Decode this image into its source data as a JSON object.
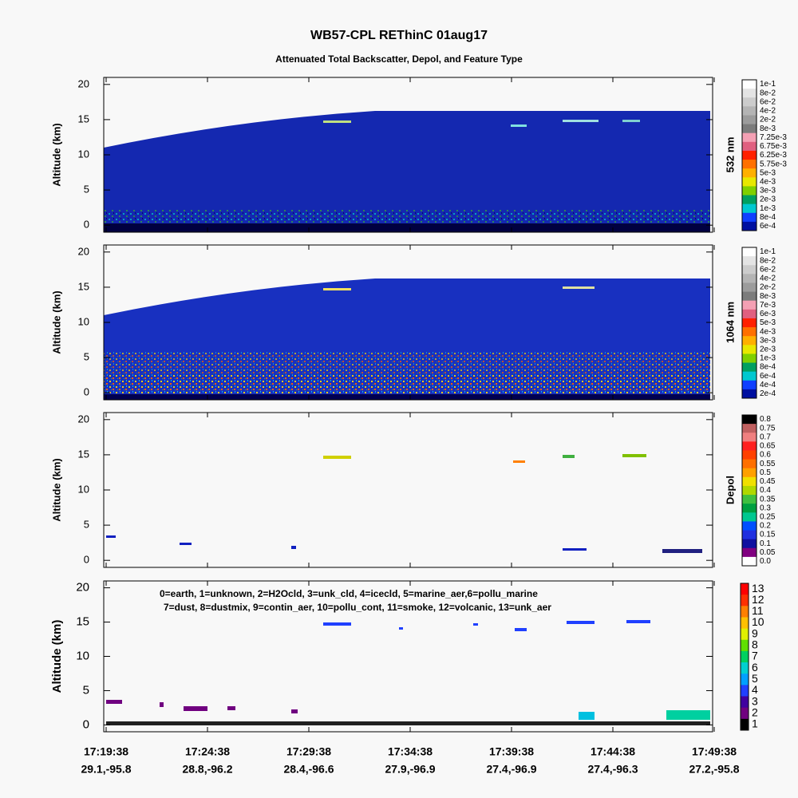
{
  "title": "WB57-CPL REThinC 01aug17",
  "subtitle": "Attenuated Total Backscatter, Depol, and Feature Type",
  "y_axis": {
    "ylim": [
      -1,
      21
    ],
    "yticks": [
      0,
      5,
      10,
      15,
      20
    ]
  },
  "x_ticks": [
    {
      "time": "17:19:38",
      "location": "29.1,-95.8"
    },
    {
      "time": "17:24:38",
      "location": "28.8,-96.2"
    },
    {
      "time": "17:29:38",
      "location": "28.4,-96.6"
    },
    {
      "time": "17:34:38",
      "location": "27.9,-96.9"
    },
    {
      "time": "17:39:38",
      "location": "27.4,-96.9"
    },
    {
      "time": "17:44:38",
      "location": "27.4,-96.3"
    },
    {
      "time": "17:49:38",
      "location": "27.2,-95.8"
    }
  ],
  "panels": [
    {
      "ylabel": "Altitude (km)",
      "colorbar": {
        "title": "532 nm",
        "labels": [
          "1e-1",
          "8e-2",
          "6e-2",
          "4e-2",
          "2e-2",
          "8e-3",
          "7.25e-3",
          "6.75e-3",
          "6.25e-3",
          "5.75e-3",
          "5e-3",
          "4e-3",
          "3e-3",
          "2e-3",
          "1e-3",
          "8e-4",
          "6e-4"
        ],
        "colors": [
          "#ffffff",
          "#e4e4e4",
          "#cccccc",
          "#b4b4b4",
          "#9c9c9c",
          "#7c7c7c",
          "#f4a0b4",
          "#e06080",
          "#ff2000",
          "#ff7000",
          "#ffb000",
          "#e8e800",
          "#80d000",
          "#00a060",
          "#00c8d0",
          "#1040ff",
          "#0010a0"
        ]
      }
    },
    {
      "ylabel": "Altitude (km)",
      "colorbar": {
        "title": "1064 nm",
        "labels": [
          "1e-1",
          "8e-2",
          "6e-2",
          "4e-2",
          "2e-2",
          "8e-3",
          "7e-3",
          "6e-3",
          "5e-3",
          "4e-3",
          "3e-3",
          "2e-3",
          "1e-3",
          "8e-4",
          "6e-4",
          "4e-4",
          "2e-4"
        ],
        "colors": [
          "#ffffff",
          "#e4e4e4",
          "#cccccc",
          "#b4b4b4",
          "#9c9c9c",
          "#7c7c7c",
          "#f4a0b4",
          "#e06080",
          "#ff2000",
          "#ff7000",
          "#ffb000",
          "#e8e800",
          "#80d000",
          "#00a060",
          "#00c8d0",
          "#1040ff",
          "#0010a0"
        ]
      }
    },
    {
      "ylabel": "Altitude (km)",
      "colorbar": {
        "title": "Depol",
        "labels": [
          "0.8",
          "0.75",
          "0.7",
          "0.65",
          "0.6",
          "0.55",
          "0.5",
          "0.45",
          "0.4",
          "0.35",
          "0.3",
          "0.25",
          "0.2",
          "0.15",
          "0.1",
          "0.05",
          "0.0"
        ],
        "colors": [
          "#000000",
          "#c06060",
          "#f08080",
          "#ff2020",
          "#ff4000",
          "#ff7000",
          "#ffa000",
          "#f0e000",
          "#b0d800",
          "#40c040",
          "#00a040",
          "#00c890",
          "#0050ff",
          "#2030e0",
          "#1010a0",
          "#800080",
          "#ffffff"
        ]
      }
    },
    {
      "ylabel": "Altitude (km)",
      "legend": [
        "0=earth, 1=unknown, 2=H2Ocld, 3=unk_cld, 4=icecld, 5=marine_aer,6=pollu_marine",
        "7=dust, 8=dustmix, 9=contin_aer, 10=pollu_cont, 11=smoke, 12=volcanic, 13=unk_aer"
      ],
      "colorbar": {
        "labels": [
          13,
          12,
          11,
          10,
          9,
          8,
          7,
          6,
          5,
          4,
          3,
          2,
          1
        ],
        "colors": [
          "#ff0000",
          "#ff3000",
          "#ff8000",
          "#ffc000",
          "#e0f000",
          "#60e000",
          "#00d060",
          "#00d0d0",
          "#00a0ff",
          "#2040ff",
          "#4000a0",
          "#700080",
          "#000000"
        ]
      }
    }
  ]
}
